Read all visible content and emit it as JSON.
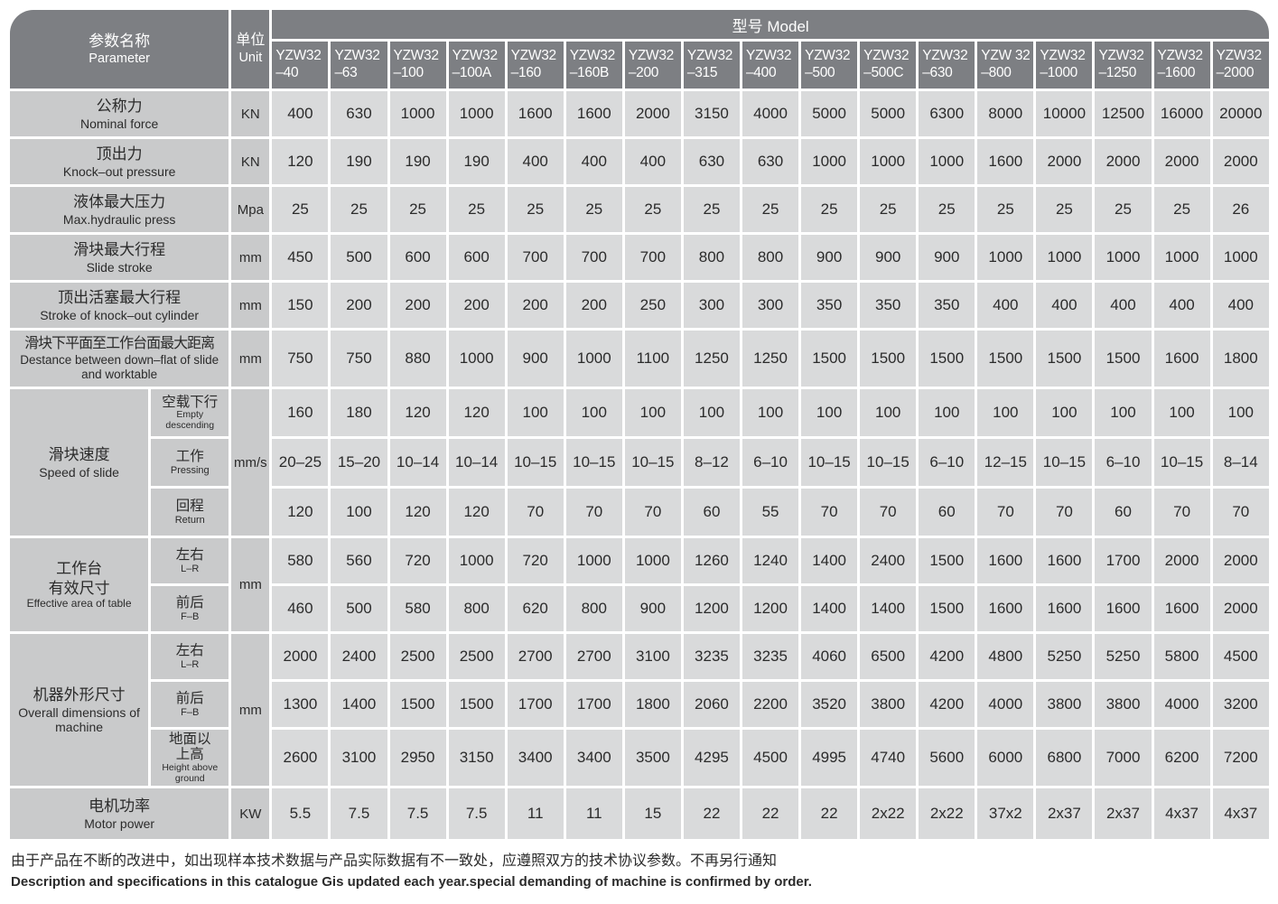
{
  "colors": {
    "header_bg": "#7d7f83",
    "label_bg": "#c9cacb",
    "value_bg": "#d9dadb",
    "divider": "#ffffff",
    "header_text": "#ffffff",
    "body_text": "#2b2b2b"
  },
  "table": {
    "corner": {
      "param_zh": "参数名称",
      "param_en": "Parameter",
      "unit_zh": "单位",
      "unit_en": "Unit"
    },
    "model_header": "型号 Model",
    "models": [
      {
        "line1": "YZW32",
        "line2": "–40"
      },
      {
        "line1": "YZW32",
        "line2": "–63"
      },
      {
        "line1": "YZW32",
        "line2": "–100"
      },
      {
        "line1": "YZW32",
        "line2": "–100A"
      },
      {
        "line1": "YZW32",
        "line2": "–160"
      },
      {
        "line1": "YZW32",
        "line2": "–160B"
      },
      {
        "line1": "YZW32",
        "line2": "–200"
      },
      {
        "line1": "YZW32",
        "line2": "–315"
      },
      {
        "line1": "YZW32",
        "line2": "–400"
      },
      {
        "line1": "YZW32",
        "line2": "–500"
      },
      {
        "line1": "YZW32",
        "line2": "–500C"
      },
      {
        "line1": "YZW32",
        "line2": "–630"
      },
      {
        "line1": "YZW 32",
        "line2": "–800"
      },
      {
        "line1": "YZW32",
        "line2": "–1000"
      },
      {
        "line1": "YZW32",
        "line2": "–1250"
      },
      {
        "line1": "YZW32",
        "line2": "–1600"
      },
      {
        "line1": "YZW32",
        "line2": "–2000"
      }
    ],
    "sections": [
      {
        "id": "nominal-force",
        "label_zh": "公称力",
        "label_en": "Nominal force",
        "unit": "KN",
        "values": [
          "400",
          "630",
          "1000",
          "1000",
          "1600",
          "1600",
          "2000",
          "3150",
          "4000",
          "5000",
          "5000",
          "6300",
          "8000",
          "10000",
          "12500",
          "16000",
          "20000"
        ]
      },
      {
        "id": "knock-out-pressure",
        "label_zh": "顶出力",
        "label_en": "Knock–out pressure",
        "unit": "KN",
        "values": [
          "120",
          "190",
          "190",
          "190",
          "400",
          "400",
          "400",
          "630",
          "630",
          "1000",
          "1000",
          "1000",
          "1600",
          "2000",
          "2000",
          "2000",
          "2000"
        ]
      },
      {
        "id": "max-hydraulic-press",
        "label_zh": "液体最大压力",
        "label_en": "Max.hydraulic press",
        "unit": "Mpa",
        "values": [
          "25",
          "25",
          "25",
          "25",
          "25",
          "25",
          "25",
          "25",
          "25",
          "25",
          "25",
          "25",
          "25",
          "25",
          "25",
          "25",
          "26"
        ]
      },
      {
        "id": "slide-stroke",
        "label_zh": "滑块最大行程",
        "label_en": "Slide stroke",
        "unit": "mm",
        "values": [
          "450",
          "500",
          "600",
          "600",
          "700",
          "700",
          "700",
          "800",
          "800",
          "900",
          "900",
          "900",
          "1000",
          "1000",
          "1000",
          "1000",
          "1000"
        ]
      },
      {
        "id": "knock-out-cylinder-stroke",
        "label_zh": "顶出活塞最大行程",
        "label_en": "Stroke of knock–out cylinder",
        "unit": "mm",
        "values": [
          "150",
          "200",
          "200",
          "200",
          "200",
          "200",
          "250",
          "300",
          "300",
          "350",
          "350",
          "350",
          "400",
          "400",
          "400",
          "400",
          "400"
        ]
      },
      {
        "id": "slide-worktable-distance",
        "label_zh": "滑块下平面至工作台面最大距离",
        "label_en": "Destance between down–flat of slide and worktable",
        "unit": "mm",
        "values": [
          "750",
          "750",
          "880",
          "1000",
          "900",
          "1000",
          "1100",
          "1250",
          "1250",
          "1500",
          "1500",
          "1500",
          "1500",
          "1500",
          "1500",
          "1600",
          "1800"
        ]
      },
      {
        "id": "speed-of-slide",
        "group_zh": "滑块速度",
        "group_en": "Speed of slide",
        "unit": "mm/s",
        "subrows": [
          {
            "label_zh": "空载下行",
            "label_en": "Empty descending",
            "values": [
              "160",
              "180",
              "120",
              "120",
              "100",
              "100",
              "100",
              "100",
              "100",
              "100",
              "100",
              "100",
              "100",
              "100",
              "100",
              "100",
              "100"
            ]
          },
          {
            "label_zh": "工作",
            "label_en": "Pressing",
            "values": [
              "20–25",
              "15–20",
              "10–14",
              "10–14",
              "10–15",
              "10–15",
              "10–15",
              "8–12",
              "6–10",
              "10–15",
              "10–15",
              "6–10",
              "12–15",
              "10–15",
              "6–10",
              "10–15",
              "8–14"
            ]
          },
          {
            "label_zh": "回程",
            "label_en": "Return",
            "values": [
              "120",
              "100",
              "120",
              "120",
              "70",
              "70",
              "70",
              "60",
              "55",
              "70",
              "70",
              "60",
              "70",
              "70",
              "60",
              "70",
              "70"
            ]
          }
        ]
      },
      {
        "id": "table-effective-area",
        "group_zh": "工作台\n有效尺寸",
        "group_en": "Effective area of table",
        "unit": "mm",
        "subrows": [
          {
            "label_zh": "左右",
            "label_en": "L–R",
            "values": [
              "580",
              "560",
              "720",
              "1000",
              "720",
              "1000",
              "1000",
              "1260",
              "1240",
              "1400",
              "2400",
              "1500",
              "1600",
              "1600",
              "1700",
              "2000",
              "2000"
            ]
          },
          {
            "label_zh": "前后",
            "label_en": "F–B",
            "values": [
              "460",
              "500",
              "580",
              "800",
              "620",
              "800",
              "900",
              "1200",
              "1200",
              "1400",
              "1400",
              "1500",
              "1600",
              "1600",
              "1600",
              "1600",
              "2000"
            ]
          }
        ]
      },
      {
        "id": "overall-dimensions",
        "group_zh": "机器外形尺寸",
        "group_en": "Overall dimensions of machine",
        "unit": "mm",
        "subrows": [
          {
            "label_zh": "左右",
            "label_en": "L–R",
            "values": [
              "2000",
              "2400",
              "2500",
              "2500",
              "2700",
              "2700",
              "3100",
              "3235",
              "3235",
              "4060",
              "6500",
              "4200",
              "4800",
              "5250",
              "5250",
              "5800",
              "4500"
            ]
          },
          {
            "label_zh": "前后",
            "label_en": "F–B",
            "values": [
              "1300",
              "1400",
              "1500",
              "1500",
              "1700",
              "1700",
              "1800",
              "2060",
              "2200",
              "3520",
              "3800",
              "4200",
              "4000",
              "3800",
              "3800",
              "4000",
              "3200"
            ]
          },
          {
            "label_zh": "地面以\n上高",
            "label_en": "Height above ground",
            "values": [
              "2600",
              "3100",
              "2950",
              "3150",
              "3400",
              "3400",
              "3500",
              "4295",
              "4500",
              "4995",
              "4740",
              "5600",
              "6000",
              "6800",
              "7000",
              "6200",
              "7200"
            ]
          }
        ]
      },
      {
        "id": "motor-power",
        "label_zh": "电机功率",
        "label_en": "Motor power",
        "unit": "KW",
        "values": [
          "5.5",
          "7.5",
          "7.5",
          "7.5",
          "11",
          "11",
          "15",
          "22",
          "22",
          "22",
          "2x22",
          "2x22",
          "37x2",
          "2x37",
          "2x37",
          "4x37",
          "4x37"
        ]
      }
    ]
  },
  "footer": {
    "zh": "由于产品在不断的改进中，如出现样本技术数据与产品实际数据有不一致处，应遵照双方的技术协议参数。不再另行通知",
    "en": "Description and specifications in this catalogue Gis updated each year.special demanding of machine is confirmed by order."
  }
}
